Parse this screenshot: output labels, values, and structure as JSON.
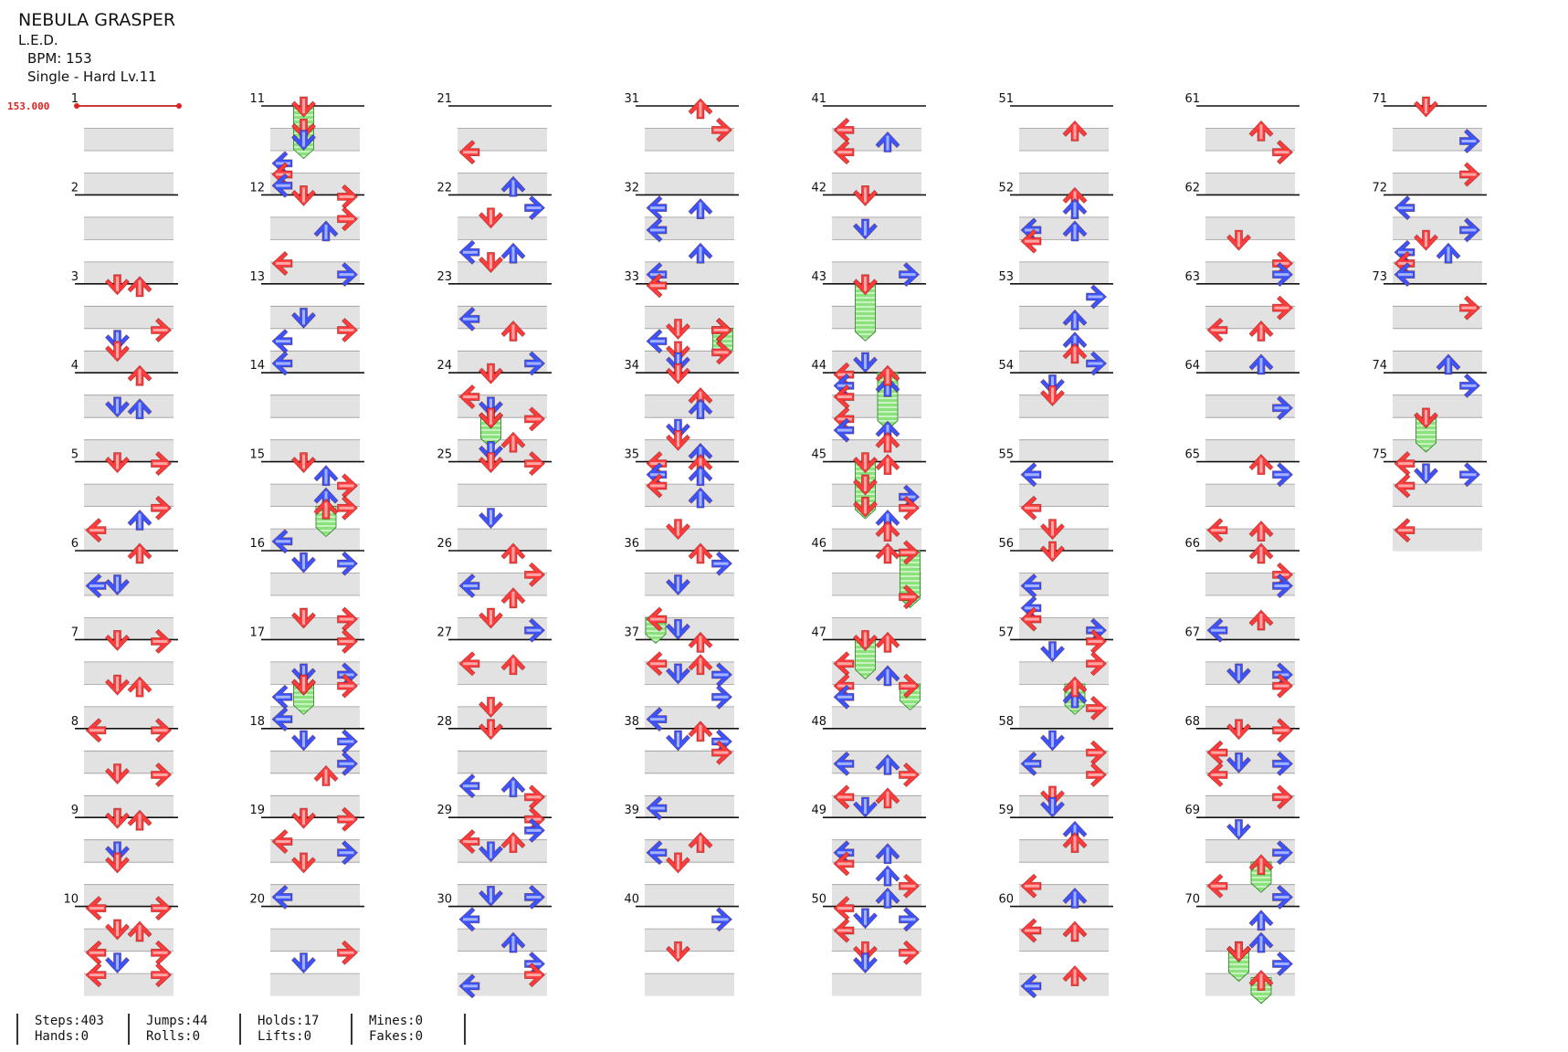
{
  "title": "NEBULA GRASPER",
  "artist": "L.E.D.",
  "bpm_line": "BPM: 153",
  "chart_line": "Single - Hard  Lv.11",
  "bpm_marker": "153.000",
  "measure_labels": [
    "1",
    "2",
    "3",
    "4",
    "5",
    "6",
    "7",
    "8",
    "9",
    "10",
    "11",
    "12",
    "13",
    "14",
    "15",
    "16",
    "17",
    "18",
    "19",
    "20",
    "21",
    "22",
    "23",
    "24",
    "25",
    "26",
    "27",
    "28",
    "29",
    "30",
    "31",
    "32",
    "33",
    "34",
    "35",
    "36",
    "37",
    "38",
    "39",
    "40",
    "41",
    "42",
    "43",
    "44",
    "45",
    "46",
    "47",
    "48",
    "49",
    "50",
    "51",
    "52",
    "53",
    "54",
    "55",
    "56",
    "57",
    "58",
    "59",
    "60",
    "61",
    "62",
    "63",
    "64",
    "65",
    "66",
    "67",
    "68",
    "69",
    "70",
    "71",
    "72",
    "73",
    "74",
    "75"
  ],
  "stats": [
    {
      "l1": "Steps:403",
      "l2": "Hands:0"
    },
    {
      "l1": "Jumps:44",
      "l2": "Rolls:0"
    },
    {
      "l1": "Holds:17",
      "l2": "Lifts:0"
    },
    {
      "l1": "Mines:0",
      "l2": "Fakes:0"
    }
  ],
  "colors": {
    "quarter": "#ff3b3b",
    "eighth": "#3a55ff",
    "sixteenth": "#ffe333",
    "hold": "#7ddc6f",
    "bpm": "#dd2222",
    "lane_shade": "#e2e2e2"
  },
  "notes": [
    {
      "m": 3,
      "r": [
        [
          0.0,
          "0110"
        ],
        [
          0.5,
          "0001"
        ],
        [
          0.625,
          "0100"
        ],
        [
          0.75,
          "0100"
        ]
      ]
    },
    {
      "m": 4,
      "r": [
        [
          0.0,
          "0010"
        ],
        [
          0.375,
          "0100"
        ],
        [
          0.375,
          "0010"
        ]
      ]
    },
    {
      "m": 5,
      "r": [
        [
          0.0,
          "0101"
        ],
        [
          0.5,
          "0001"
        ],
        [
          0.625,
          "0010"
        ],
        [
          0.75,
          "1000"
        ]
      ]
    },
    {
      "m": 6,
      "r": [
        [
          0.0,
          "0010"
        ],
        [
          0.375,
          "1100"
        ]
      ]
    },
    {
      "m": 7,
      "r": [
        [
          0.0,
          "0101"
        ],
        [
          0.5,
          "0110"
        ]
      ]
    },
    {
      "m": 8,
      "r": [
        [
          0.0,
          "1001"
        ],
        [
          0.5,
          "0101"
        ]
      ]
    },
    {
      "m": 9,
      "r": [
        [
          0.0,
          "0110"
        ],
        [
          0.375,
          "0100"
        ],
        [
          0.5,
          "0100"
        ]
      ]
    },
    {
      "m": 10,
      "r": [
        [
          0.0,
          "1001"
        ],
        [
          0.25,
          "0110"
        ],
        [
          0.5,
          "1001"
        ],
        [
          0.625,
          "0100"
        ],
        [
          0.75,
          "1001"
        ]
      ]
    }
  ]
}
